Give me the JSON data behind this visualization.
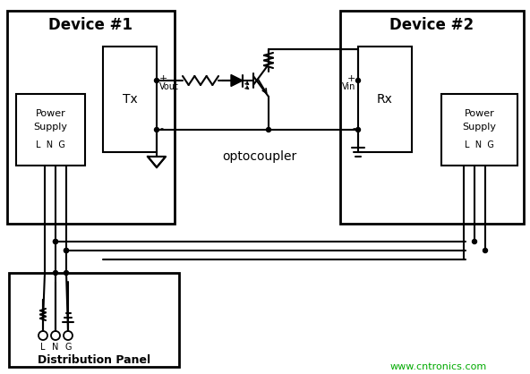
{
  "bg_color": "#ffffff",
  "line_color": "#000000",
  "watermark_color": "#00aa00",
  "watermark_text": "www.cntronics.com",
  "device1_label": "Device #1",
  "device2_label": "Device #2",
  "tx_label": "Tx",
  "rx_label": "Rx",
  "dist_label": "Distribution Panel",
  "optocoupler_label": "optocoupler",
  "vout_label": "Vout",
  "vin_label": "Vin"
}
